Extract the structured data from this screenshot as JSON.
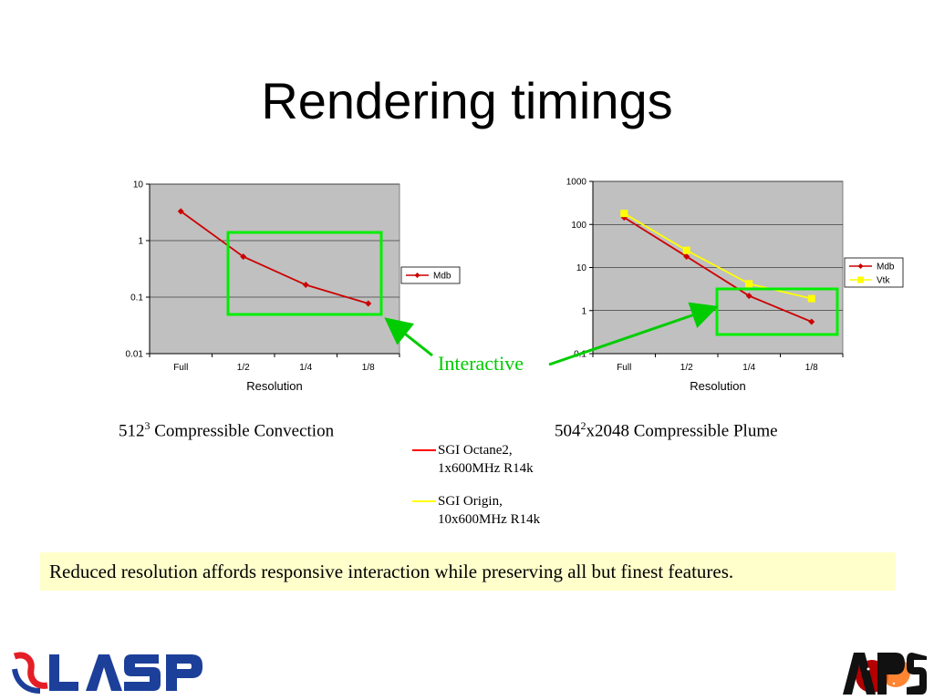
{
  "slide": {
    "title": "Rendering timings",
    "interactive_label": "Interactive",
    "caption_left": {
      "base": "512",
      "sup": "3",
      "rest": " Compressible Convection"
    },
    "caption_right": {
      "base": "504",
      "sup": "2",
      "rest": "x2048 Compressible Plume"
    },
    "machines": [
      {
        "name": "SGI Octane2,",
        "detail": "1x600MHz R14k",
        "color": "#ff0000"
      },
      {
        "name": "SGI Origin,",
        "detail": "10x600MHz R14k",
        "color": "#ffff00"
      }
    ],
    "note": "Reduced resolution affords responsive interaction while preserving all but finest features.",
    "logos": {
      "left": "LASP",
      "right": "APS"
    }
  },
  "colors": {
    "plot_area": "#c0c0c0",
    "mdb": "#cc0000",
    "vtk": "#ffff00",
    "highlight": "#00cc00",
    "note_bg": "#ffffcc",
    "lasp_blue": "#1c3f9a",
    "lasp_red": "#e41e26"
  },
  "chart_data": [
    {
      "type": "line",
      "scale": "log",
      "categories": [
        "Full",
        "1/2",
        "1/4",
        "1/8"
      ],
      "y_ticks": [
        "10",
        "1",
        "0.1",
        "0.01"
      ],
      "ylim": [
        0.01,
        10
      ],
      "xlabel": "Resolution",
      "ylabel": "",
      "grid": true,
      "legend_position": "right",
      "series": [
        {
          "name": "Mdb",
          "values": [
            3.3,
            0.52,
            0.165,
            0.077
          ],
          "color": "#cc0000",
          "marker": "diamond"
        }
      ]
    },
    {
      "type": "line",
      "scale": "log",
      "categories": [
        "Full",
        "1/2",
        "1/4",
        "1/8"
      ],
      "y_ticks": [
        "1000",
        "100",
        "10",
        "1",
        "0.1"
      ],
      "ylim": [
        0.1,
        1000
      ],
      "xlabel": "Resolution",
      "ylabel": "",
      "grid": true,
      "legend_position": "right",
      "series": [
        {
          "name": "Mdb",
          "values": [
            145,
            18,
            2.2,
            0.55
          ],
          "color": "#cc0000",
          "marker": "diamond"
        },
        {
          "name": "Vtk",
          "values": [
            180,
            25,
            4.2,
            1.9
          ],
          "color": "#ffff00",
          "marker": "square"
        }
      ]
    }
  ]
}
